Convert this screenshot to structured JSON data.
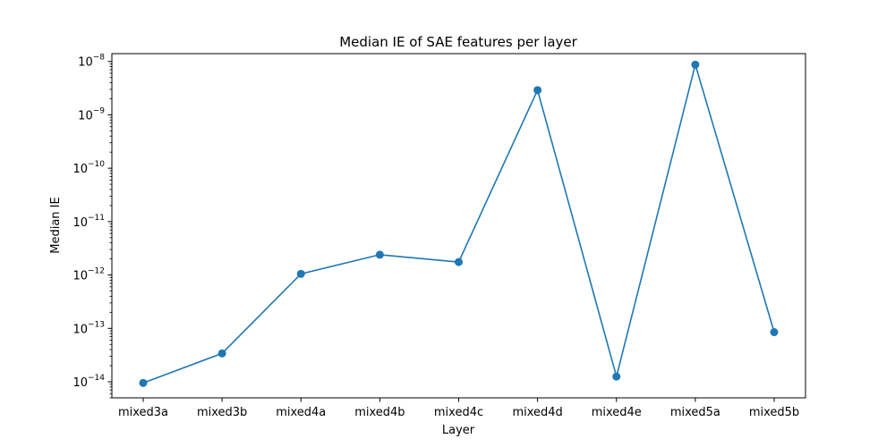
{
  "chart_data": {
    "type": "line",
    "title": "Median IE of SAE features per layer",
    "xlabel": "Layer",
    "ylabel": "Median IE",
    "categories": [
      "mixed3a",
      "mixed3b",
      "mixed4a",
      "mixed4b",
      "mixed4c",
      "mixed4d",
      "mixed4e",
      "mixed5a",
      "mixed5b"
    ],
    "series": [
      {
        "values": [
          9.5e-15,
          3.4e-14,
          1.05e-12,
          2.4e-12,
          1.75e-12,
          2.9e-09,
          1.25e-14,
          8.7e-09,
          8.5e-14
        ]
      }
    ],
    "y_scale": "log",
    "ylim": [
      5e-15,
      1.4e-08
    ],
    "y_ticks": [
      {
        "value": 1e-14,
        "base": "10",
        "exp": "−14"
      },
      {
        "value": 1e-13,
        "base": "10",
        "exp": "−13"
      },
      {
        "value": 1e-12,
        "base": "10",
        "exp": "−12"
      },
      {
        "value": 1e-11,
        "base": "10",
        "exp": "−11"
      },
      {
        "value": 1e-10,
        "base": "10",
        "exp": "−10"
      },
      {
        "value": 1e-09,
        "base": "10",
        "exp": "−9"
      },
      {
        "value": 1e-08,
        "base": "10",
        "exp": "−8"
      }
    ],
    "line_color": "#1f77b4",
    "marker": "circle",
    "grid": false,
    "legend": "none"
  }
}
